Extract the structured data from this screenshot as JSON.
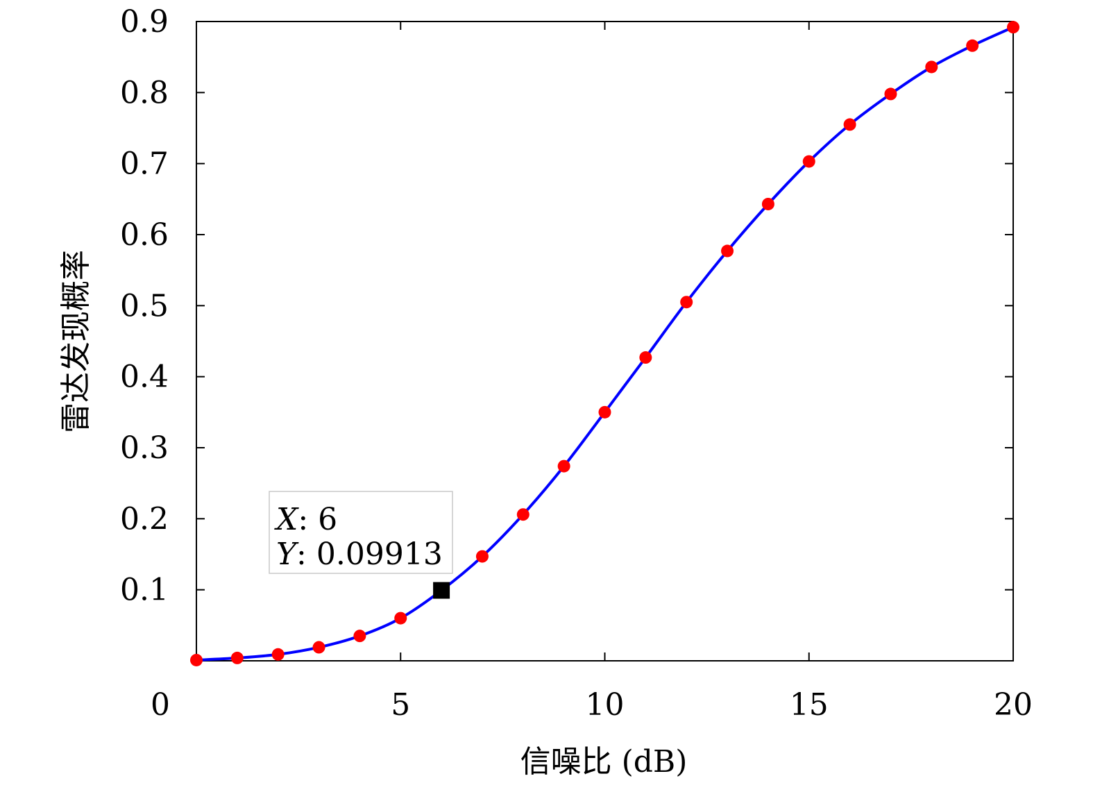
{
  "chart_data": {
    "type": "line",
    "xlabel": "信噪比 (dB)",
    "ylabel": "雷达发现概率",
    "xlim": [
      0,
      20
    ],
    "ylim": [
      0,
      0.9
    ],
    "x_ticks": [
      "0",
      "5",
      "10",
      "15",
      "20"
    ],
    "y_ticks": [
      "0.1",
      "0.2",
      "0.3",
      "0.4",
      "0.5",
      "0.6",
      "0.7",
      "0.8",
      "0.9"
    ],
    "grid": false,
    "series": [
      {
        "line_color": "#0000ff",
        "marker_color": "#ff0000",
        "x": [
          0,
          1,
          2,
          3,
          4,
          5,
          6,
          7,
          8,
          9,
          10,
          11,
          12,
          13,
          14,
          15,
          16,
          17,
          18,
          19,
          20
        ],
        "y": [
          0.001,
          0.004,
          0.009,
          0.019,
          0.035,
          0.06,
          0.09913,
          0.147,
          0.206,
          0.274,
          0.35,
          0.427,
          0.505,
          0.577,
          0.643,
          0.703,
          0.755,
          0.798,
          0.836,
          0.866,
          0.892
        ]
      }
    ],
    "datatip": {
      "x_key": "X",
      "x_value": "6",
      "y_key": "Y",
      "y_value": "0.09913",
      "point": [
        6,
        0.09913
      ]
    }
  }
}
